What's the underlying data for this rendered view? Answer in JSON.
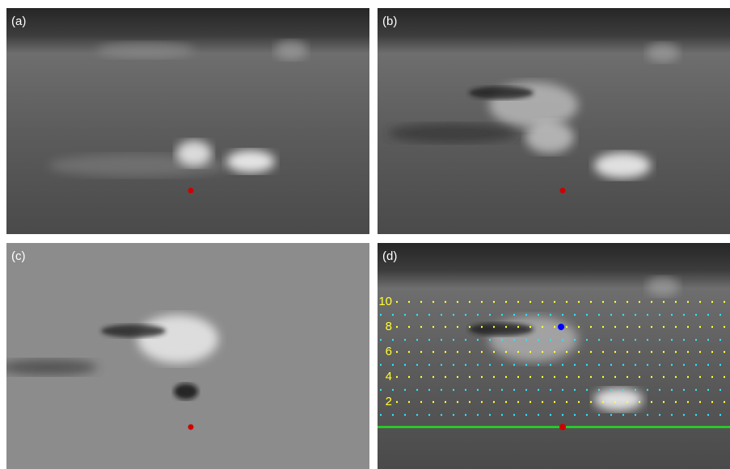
{
  "panels": [
    {
      "label": "(a)"
    },
    {
      "label": "(b)"
    },
    {
      "label": "(c)"
    },
    {
      "label": "(d)"
    }
  ],
  "scale_labels": [
    "2",
    "4",
    "6",
    "8",
    "10"
  ]
}
